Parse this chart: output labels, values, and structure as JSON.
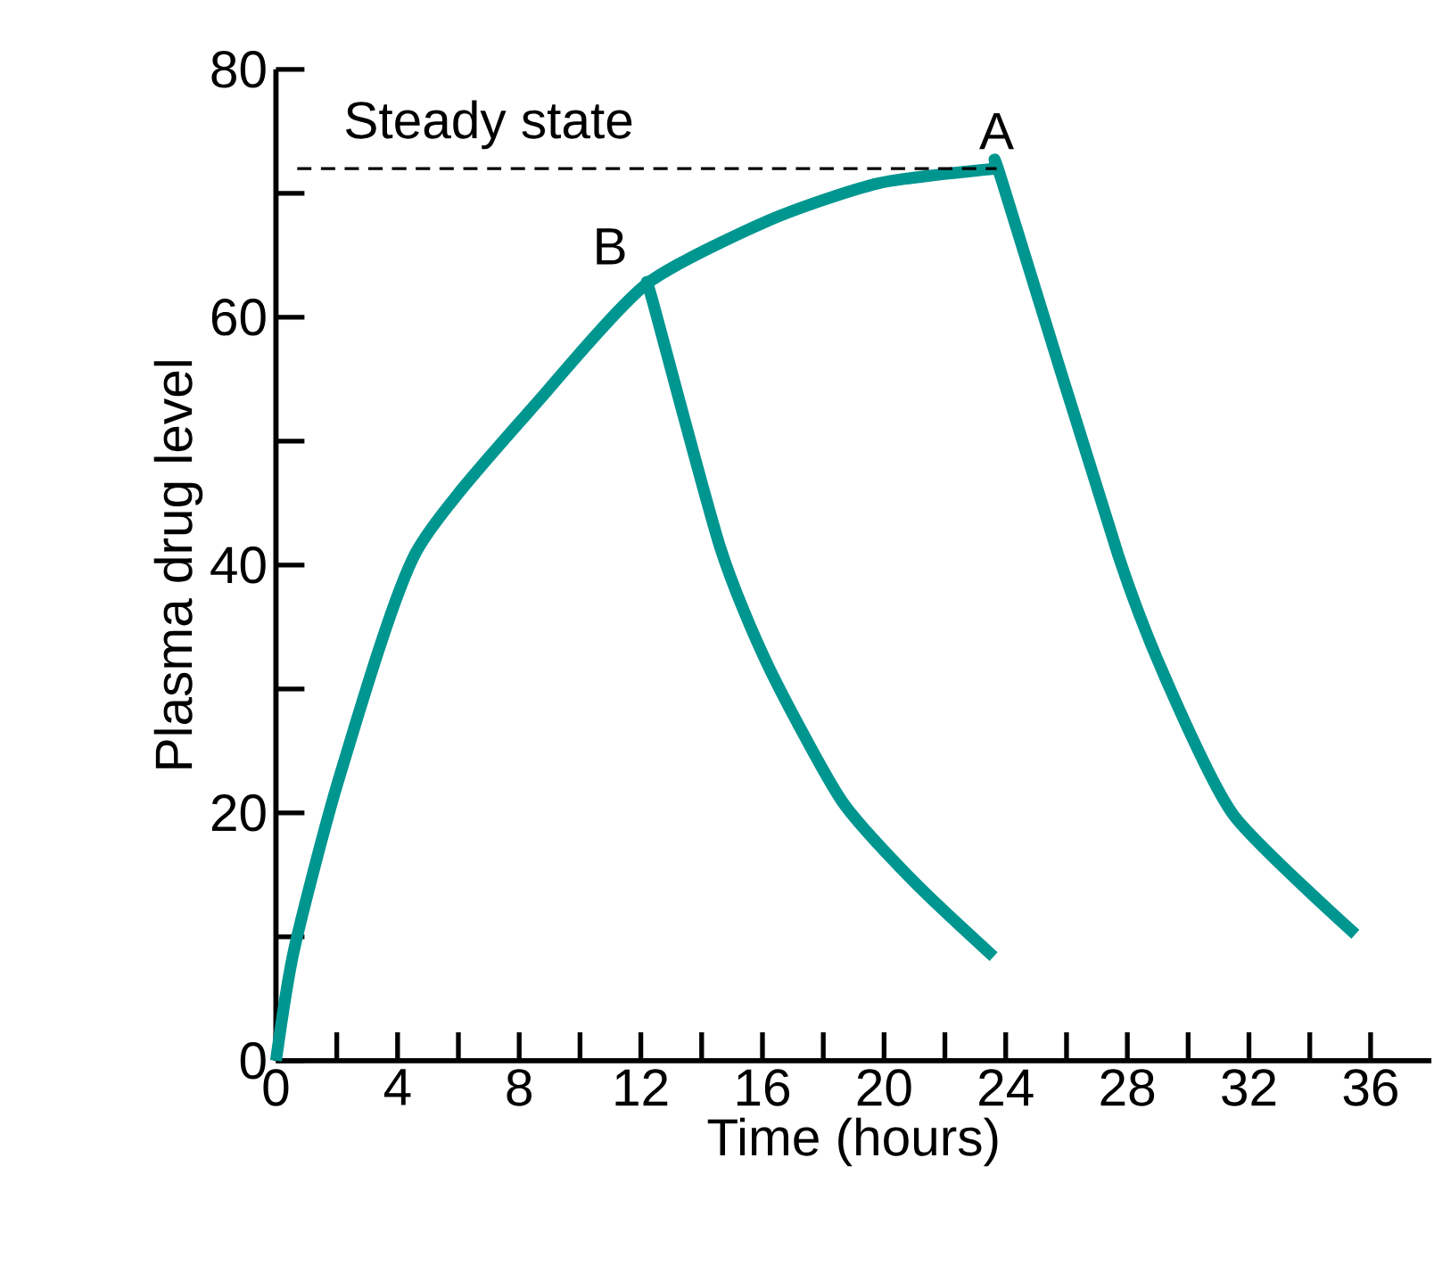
{
  "chart_data": {
    "type": "line",
    "xlabel": "Time (hours)",
    "ylabel": "Plasma drug level",
    "xlim": [
      0,
      38
    ],
    "ylim": [
      0,
      80
    ],
    "xticks": [
      0,
      {
        "value": 2,
        "label": null
      },
      4,
      {
        "value": 6,
        "label": null
      },
      8,
      {
        "value": 10,
        "label": null
      },
      12,
      {
        "value": 14,
        "label": null
      },
      16,
      {
        "value": 18,
        "label": null
      },
      20,
      {
        "value": 22,
        "label": null
      },
      24,
      {
        "value": 26,
        "label": null
      },
      28,
      {
        "value": 30,
        "label": null
      },
      32,
      {
        "value": 34,
        "label": null
      },
      36
    ],
    "yticks": [
      0,
      {
        "value": 10,
        "label": null
      },
      20,
      {
        "value": 30,
        "label": null
      },
      40,
      {
        "value": 50,
        "label": null
      },
      60,
      {
        "value": 70,
        "label": null
      },
      80
    ],
    "marker": "none",
    "series": [
      {
        "color": "#000000",
        "line_style": "dashed",
        "x": [
          0.7,
          23.7
        ],
        "values": [
          72,
          72
        ]
      },
      {
        "color": "#009690",
        "line_style": "solid",
        "x": [
          0,
          0.6,
          2.1,
          4.6,
          8.9,
          12.2,
          16.2,
          19.8,
          23.7
        ],
        "values": [
          0,
          9,
          23,
          41,
          54,
          62.7,
          67.8,
          70.8,
          72
        ]
      },
      {
        "color": "#009690",
        "line_style": "solid",
        "x": [
          12.2,
          12.4,
          14.6,
          16.2,
          18.6,
          21.0,
          23.6
        ],
        "values": [
          62.7,
          61.2,
          41.5,
          31.8,
          21,
          14.4,
          8.4
        ]
      },
      {
        "color": "#009690",
        "line_style": "solid",
        "x": [
          23.7,
          23.9,
          27.7,
          29.3,
          31.5,
          35.5
        ],
        "values": [
          72,
          70.8,
          40.8,
          30.6,
          19.8,
          10.2
        ]
      }
    ],
    "annotations": [
      {
        "text": "Steady state",
        "x": 7,
        "y": 72
      },
      {
        "text": "A",
        "x": 23.7,
        "y": 72
      },
      {
        "text": "B",
        "x": 12.2,
        "y": 62.7
      }
    ]
  }
}
